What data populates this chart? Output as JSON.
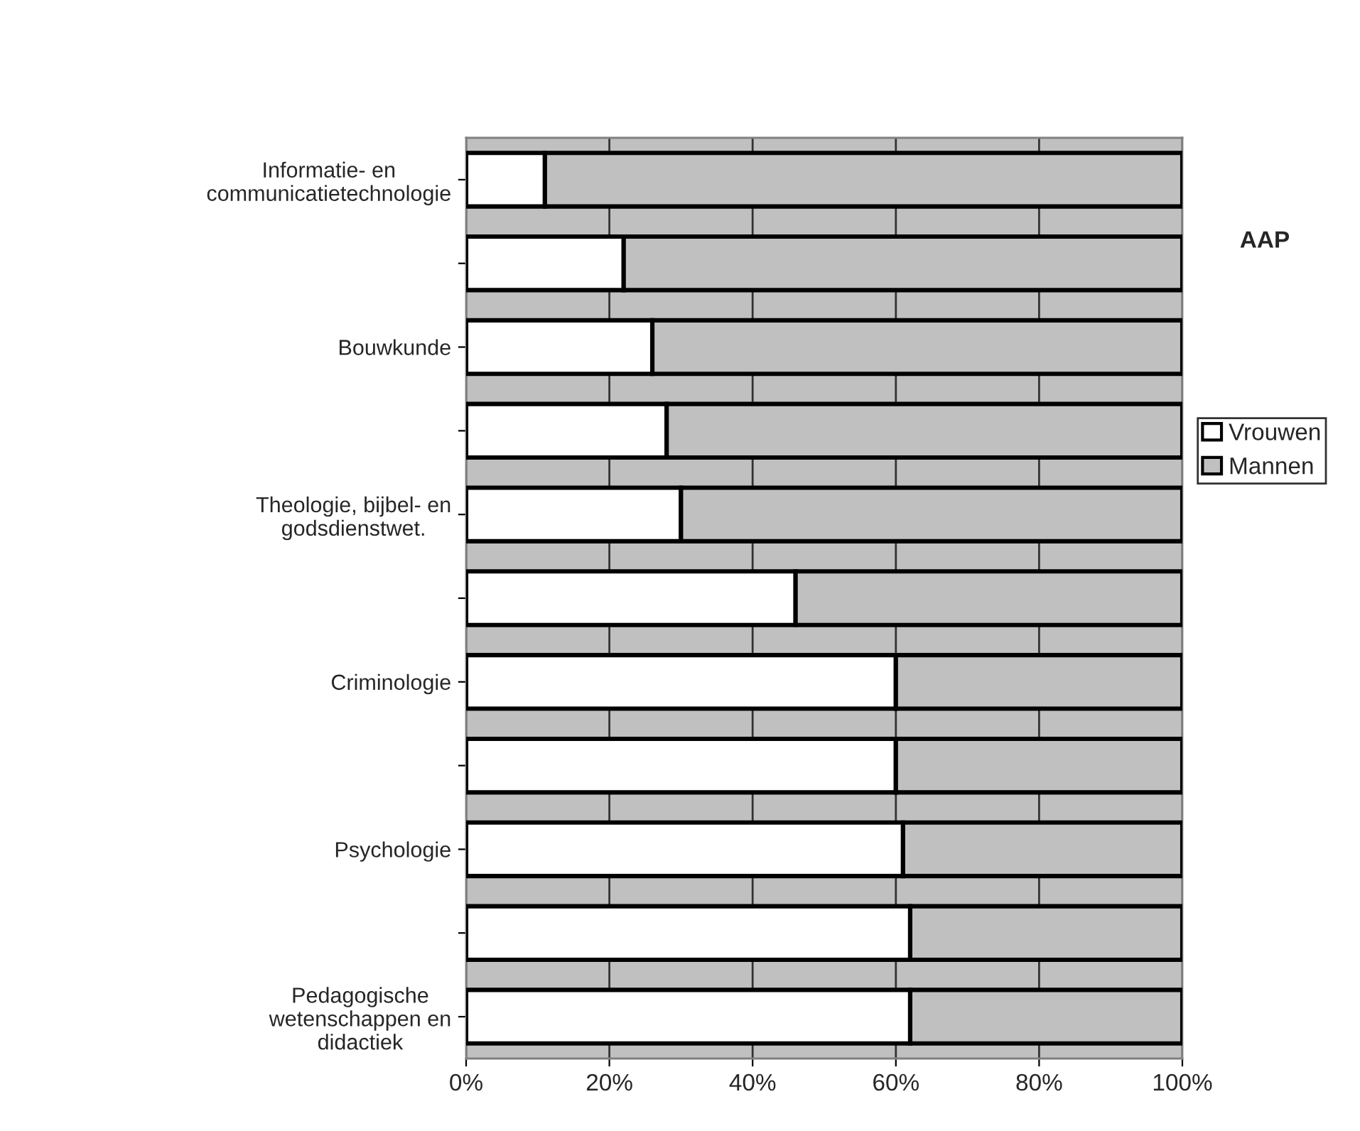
{
  "chart_data": {
    "type": "bar",
    "orientation": "horizontal",
    "stacked": true,
    "categories": [
      "Informatie- en communicatietechnologie",
      null,
      "Bouwkunde",
      null,
      "Theologie, bijbel- en godsdienstwet.",
      null,
      "Criminologie",
      null,
      "Psychologie",
      null,
      "Pedagogische wetenschappen en didactiek"
    ],
    "series": [
      {
        "name": "Vrouwen",
        "color": "#ffffff",
        "values": [
          11,
          22,
          26,
          28,
          30,
          46,
          60,
          60,
          61,
          62,
          62
        ]
      },
      {
        "name": "Mannen",
        "color": "#c0c0c0",
        "values": [
          89,
          78,
          74,
          72,
          70,
          54,
          40,
          40,
          39,
          38,
          38
        ]
      }
    ],
    "xlim": [
      0,
      100
    ],
    "xticks": [
      {
        "value": 0,
        "label": "0%"
      },
      {
        "value": 20,
        "label": "20%"
      },
      {
        "value": 40,
        "label": "40%"
      },
      {
        "value": 60,
        "label": "60%"
      },
      {
        "value": 80,
        "label": "80%"
      },
      {
        "value": 100,
        "label": "100%"
      }
    ],
    "grid": "x",
    "legend": "right",
    "annotations": [
      "AAP"
    ]
  }
}
